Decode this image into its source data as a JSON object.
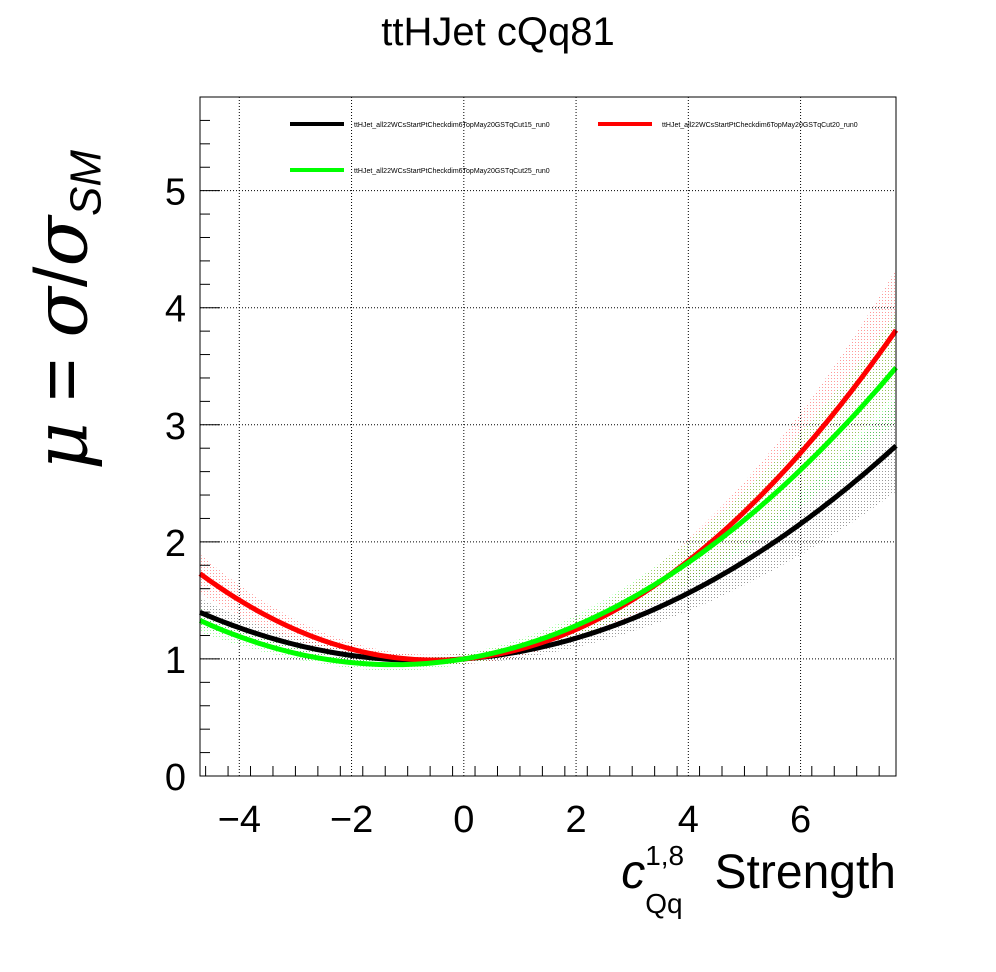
{
  "title": "ttHJet cQq81",
  "y_axis": {
    "mu": "μ",
    "equals": " = ",
    "sigma": "σ",
    "slash": "/",
    "sub": "SM"
  },
  "x_axis": {
    "symbol": "c",
    "superscript": "1,8",
    "subscript": "Qq",
    "word": " Strength"
  },
  "chart_data": {
    "type": "line",
    "title": "ttHJet cQq81",
    "xlabel": "c_Qq^1,8 Strength",
    "ylabel": "μ = σ/σ_SM",
    "xlim": [
      -4.7,
      7.7
    ],
    "ylim": [
      0,
      5.8
    ],
    "x_ticks": [
      -4,
      -2,
      0,
      2,
      4,
      6
    ],
    "x_tick_labels": [
      "−4",
      "−2",
      "0",
      "2",
      "4",
      "6"
    ],
    "y_ticks": [
      0,
      1,
      2,
      3,
      4,
      5
    ],
    "y_tick_labels": [
      "0",
      "1",
      "2",
      "3",
      "4",
      "5"
    ],
    "grid": true,
    "legend_position": "top",
    "series": [
      {
        "name": "ttHJet_all22WCsStartPtCheckdim6TopMay20GSTqCut15_run0",
        "color": "#000000",
        "model": {
          "a": 1.0,
          "b": 0.037,
          "c": 0.0259
        },
        "band_rel": 0.19
      },
      {
        "name": "ttHJet_all22WCsStartPtCheckdim6TopMay20GSTqCut20_run0",
        "color": "#ff0000",
        "model": {
          "a": 1.0,
          "b": 0.042,
          "c": 0.0419
        },
        "band_rel": 0.17
      },
      {
        "name": "ttHJet_all22WCsStartPtCheckdim6TopMay20GSTqCut25_run0",
        "color": "#00ff00",
        "model": {
          "a": 1.0,
          "b": 0.079,
          "c": 0.0317
        },
        "band_rel": 0.17
      }
    ],
    "x_samples": [
      -4.7,
      -4,
      -3,
      -2,
      -1,
      0,
      1,
      2,
      3,
      4,
      5,
      6,
      7,
      7.7
    ],
    "y_samples": {
      "Cut15": [
        1.4,
        1.27,
        1.12,
        1.03,
        0.99,
        1.0,
        1.06,
        1.18,
        1.34,
        1.56,
        1.83,
        2.15,
        2.53,
        2.82
      ],
      "Cut20": [
        1.73,
        1.5,
        1.25,
        1.08,
        1.0,
        1.0,
        1.08,
        1.25,
        1.5,
        1.84,
        2.26,
        2.76,
        3.35,
        3.81
      ],
      "Cut25": [
        1.33,
        1.19,
        1.05,
        0.97,
        0.95,
        1.0,
        1.11,
        1.29,
        1.52,
        1.82,
        2.19,
        2.62,
        3.11,
        3.49
      ]
    }
  }
}
